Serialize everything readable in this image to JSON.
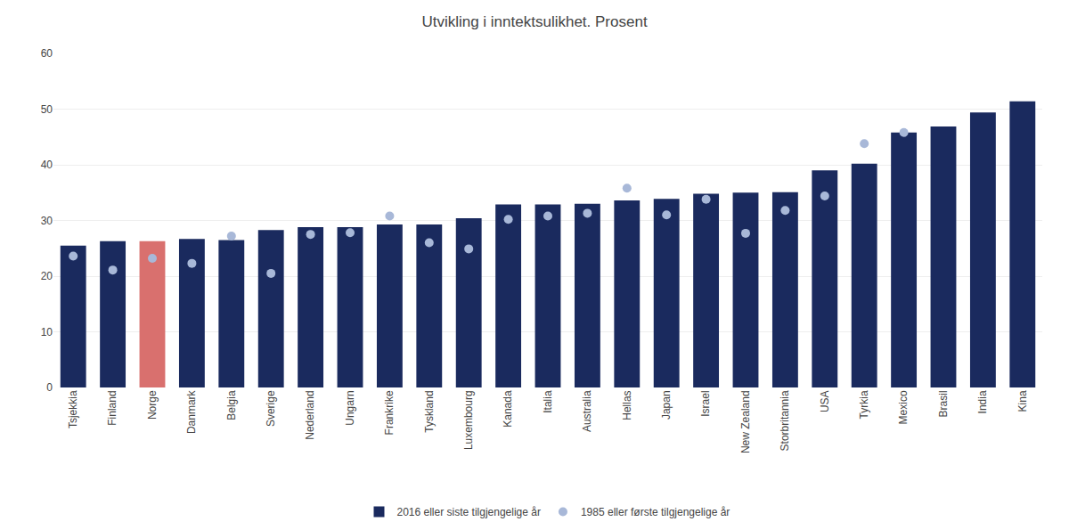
{
  "chart_data": {
    "type": "bar",
    "title": "Utvikling i inntektsulikhet. Prosent",
    "categories": [
      "Tsjekkia",
      "Finland",
      "Norge",
      "Danmark",
      "Belgia",
      "Sverige",
      "Nederland",
      "Ungarn",
      "Frankrike",
      "Tyskland",
      "Luxembourg",
      "Kanada",
      "Italia",
      "Australia",
      "Hellas",
      "Japan",
      "Israel",
      "New Zealand",
      "Storbritannia",
      "USA",
      "Tyrkia",
      "Mexico",
      "Brasil",
      "India",
      "Kina"
    ],
    "series": [
      {
        "name": "2016 eller siste tilgjengelige år",
        "type": "bar",
        "colors": [
          "#1a2a5e",
          "#1a2a5e",
          "#d9706e",
          "#1a2a5e",
          "#1a2a5e",
          "#1a2a5e",
          "#1a2a5e",
          "#1a2a5e",
          "#1a2a5e",
          "#1a2a5e",
          "#1a2a5e",
          "#1a2a5e",
          "#1a2a5e",
          "#1a2a5e",
          "#1a2a5e",
          "#1a2a5e",
          "#1a2a5e",
          "#1a2a5e",
          "#1a2a5e",
          "#1a2a5e",
          "#1a2a5e",
          "#1a2a5e",
          "#1a2a5e",
          "#1a2a5e",
          "#1a2a5e"
        ],
        "values": [
          25.5,
          26.3,
          26.3,
          26.7,
          26.5,
          28.3,
          28.8,
          28.8,
          29.3,
          29.3,
          30.4,
          32.9,
          32.9,
          33.0,
          33.6,
          33.9,
          34.8,
          35.0,
          35.1,
          39.0,
          40.2,
          45.8,
          46.9,
          49.4,
          51.4
        ]
      },
      {
        "name": "1985 eller første tilgjengelige år",
        "type": "scatter",
        "marker": "circle",
        "color": "#a8b8d8",
        "values": [
          23.6,
          21.1,
          23.2,
          22.3,
          27.2,
          20.5,
          27.5,
          27.8,
          30.8,
          26.0,
          24.9,
          30.2,
          30.8,
          31.3,
          35.8,
          31.0,
          33.8,
          27.7,
          31.8,
          34.4,
          43.8,
          45.8,
          null,
          null,
          null
        ]
      }
    ],
    "ylim": [
      0,
      60
    ],
    "yticks": [
      0,
      10,
      20,
      30,
      40,
      50,
      60
    ],
    "grid": true,
    "legend": "bottom"
  }
}
